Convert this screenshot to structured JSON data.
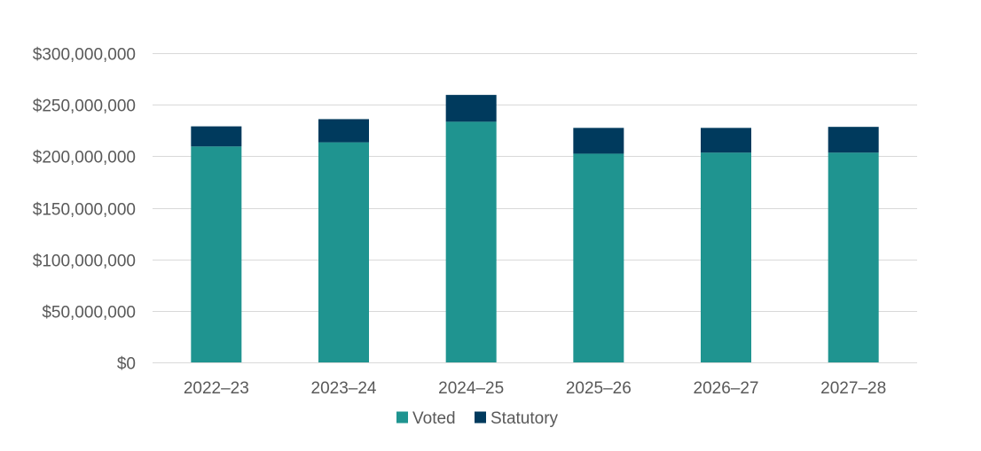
{
  "chart_data": {
    "type": "bar",
    "stacked": true,
    "categories": [
      "2022–23",
      "2023–24",
      "2024–25",
      "2025–26",
      "2026–27",
      "2027–28"
    ],
    "series": [
      {
        "name": "Voted",
        "color": "#1f9490",
        "values": [
          209500000,
          213500000,
          233500000,
          202500000,
          203500000,
          203500000
        ]
      },
      {
        "name": "Statutory",
        "color": "#003a5d",
        "values": [
          19500000,
          22500000,
          26000000,
          25000000,
          24000000,
          25000000
        ]
      }
    ],
    "ylim": [
      0,
      300000000
    ],
    "yticks": [
      0,
      50000000,
      100000000,
      150000000,
      200000000,
      250000000,
      300000000
    ],
    "ytick_labels": [
      "$0",
      "$50,000,000",
      "$100,000,000",
      "$150,000,000",
      "$200,000,000",
      "$250,000,000",
      "$300,000,000"
    ],
    "title": "",
    "xlabel": "",
    "ylabel": "",
    "grid": true,
    "legend_position": "bottom",
    "gridline_color": "#d9d9d9",
    "text_color": "#595959"
  }
}
